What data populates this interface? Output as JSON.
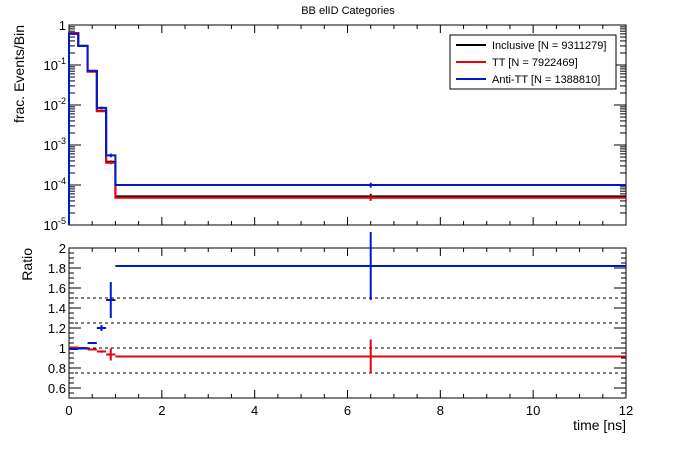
{
  "figure": {
    "title": "BB elID Categories"
  },
  "colors": {
    "inclusive": "#000000",
    "tt": "#e8000b",
    "antitt": "#0019cc",
    "frame": "#000000"
  },
  "chart_data": [
    {
      "type": "line",
      "step": true,
      "title": "BB elID Categories",
      "xlabel": "",
      "ylabel": "frac. Events/Bin",
      "xlim": [
        0,
        12
      ],
      "ylim": [
        1e-05,
        1
      ],
      "y_scale": "log",
      "grid": false,
      "legend_position": "top-right",
      "x_ticks": [
        0,
        2,
        4,
        6,
        8,
        10,
        12
      ],
      "y_tick_labels": [
        "1",
        "10^-1",
        "10^-2",
        "10^-3",
        "10^-4",
        "10^-5"
      ],
      "bin_edges": [
        0,
        0.2,
        0.4,
        0.6,
        0.8,
        1.0,
        12.0
      ],
      "series": [
        {
          "name": "Inclusive [N = 9311279]",
          "key": "inclusive",
          "values": [
            0.62,
            0.3,
            0.07,
            0.0072,
            0.00038,
            5.2e-05
          ],
          "errors": [
            0,
            0,
            0,
            0.0004,
            3e-05,
            8e-06
          ]
        },
        {
          "name": "TT [N = 7922469]",
          "key": "tt",
          "values": [
            0.63,
            0.3,
            0.068,
            0.007,
            0.00036,
            4.8e-05
          ],
          "errors": [
            0,
            0,
            0,
            0.0004,
            3e-05,
            8e-06
          ]
        },
        {
          "name": "Anti-TT [N = 1388810]",
          "key": "antitt",
          "values": [
            0.6,
            0.3,
            0.072,
            0.0085,
            0.00055,
            0.0001
          ],
          "errors": [
            0,
            0,
            0,
            0.0006,
            6e-05,
            1.4e-05
          ]
        }
      ]
    },
    {
      "type": "scatter",
      "title": "",
      "xlabel": "time [ns]",
      "ylabel": "Ratio",
      "xlim": [
        0,
        12
      ],
      "ylim": [
        0.5,
        2.0
      ],
      "grid": false,
      "reference_lines": [
        0.75,
        1.0,
        1.25,
        1.5
      ],
      "x_ticks": [
        0,
        2,
        4,
        6,
        8,
        10,
        12
      ],
      "y_ticks": [
        0.6,
        0.8,
        1,
        1.2,
        1.4,
        1.6,
        1.8,
        2
      ],
      "bin_edges": [
        0,
        0.2,
        0.4,
        0.6,
        0.8,
        1.0,
        12.0
      ],
      "series": [
        {
          "key": "tt",
          "values": [
            1.005,
            1.0,
            0.985,
            0.965,
            0.935,
            0.915
          ],
          "errors": [
            0.003,
            0.003,
            0.005,
            0.012,
            0.06,
            0.17
          ]
        },
        {
          "key": "antitt",
          "values": [
            0.99,
            0.995,
            1.05,
            1.2,
            1.48,
            1.82
          ],
          "errors": [
            0.003,
            0.004,
            0.008,
            0.03,
            0.18,
            0.34
          ]
        }
      ]
    }
  ]
}
